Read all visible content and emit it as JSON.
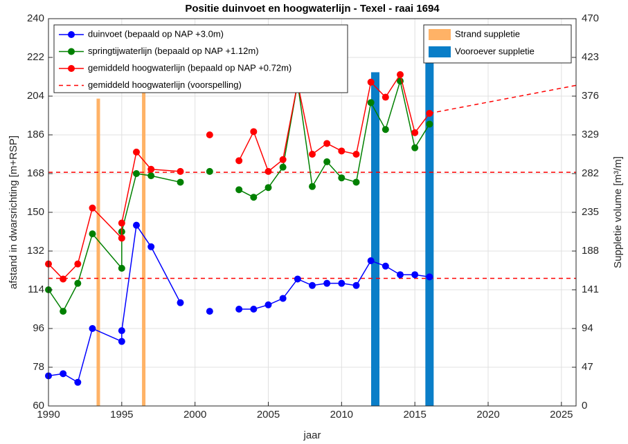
{
  "chart_data": {
    "type": "line",
    "title": "Positie duinvoet en hoogwaterlijn - Texel - raai 1694",
    "xlabel": "jaar",
    "ylabel": "afstand in dwarsrichting [m+RSP]",
    "y2label": "Suppletie volume [m³/m]",
    "xlim": [
      1990,
      2026
    ],
    "xticks": [
      1990,
      1995,
      2000,
      2005,
      2010,
      2015,
      2020,
      2025
    ],
    "ylim": [
      60,
      240
    ],
    "yticks": [
      60,
      78,
      96,
      114,
      132,
      150,
      168,
      186,
      204,
      222,
      240
    ],
    "y2lim": [
      0,
      470
    ],
    "y2ticks": [
      0,
      47,
      94,
      141,
      188,
      235,
      282,
      329,
      376,
      423,
      470
    ],
    "grid": true,
    "legend": "upper left",
    "bar_legend": "upper right",
    "series": [
      {
        "name": "duinvoet (bepaald op NAP +3.0m)",
        "color": "#0000ff",
        "style": "solid",
        "x": [
          1990,
          1991,
          1992,
          1993,
          1995,
          1995,
          1996,
          1997,
          1999,
          2000,
          2001,
          2002,
          2003,
          2004,
          2005,
          2006,
          2007,
          2008,
          2009,
          2010,
          2011,
          2012,
          2013,
          2014,
          2015,
          2016
        ],
        "values": [
          74,
          75,
          71,
          96,
          90,
          95,
          144,
          134,
          108,
          null,
          104,
          null,
          105,
          105,
          107,
          110,
          119,
          116,
          117,
          117,
          116,
          127.5,
          125,
          121,
          121,
          120
        ]
      },
      {
        "name": "springtijwaterlijn (bepaald op NAP +1.12m)",
        "color": "#008000",
        "style": "solid",
        "x": [
          1990,
          1991,
          1992,
          1993,
          1995,
          1995,
          1996,
          1997,
          1999,
          2000,
          2001,
          2002,
          2003,
          2004,
          2005,
          2006,
          2007,
          2008,
          2009,
          2010,
          2011,
          2012,
          2013,
          2014,
          2015,
          2016
        ],
        "values": [
          114,
          104,
          117,
          140,
          124,
          141,
          168,
          167,
          164,
          null,
          169,
          null,
          160.5,
          157,
          161.5,
          171,
          210,
          162,
          173.5,
          166,
          164,
          201,
          188.5,
          211,
          180,
          191
        ]
      },
      {
        "name": "gemiddeld hoogwaterlijn (bepaald op NAP +0.72m)",
        "color": "#ff0000",
        "style": "solid",
        "x": [
          1990,
          1991,
          1992,
          1993,
          1995,
          1995,
          1996,
          1997,
          1999,
          2000,
          2001,
          2002,
          2003,
          2004,
          2005,
          2006,
          2007,
          2008,
          2009,
          2010,
          2011,
          2012,
          2013,
          2014,
          2015,
          2016
        ],
        "values": [
          126,
          119,
          126,
          152,
          138,
          145,
          178,
          170,
          169,
          null,
          186,
          null,
          174,
          187.5,
          169,
          174.5,
          210,
          177,
          182,
          178.5,
          177,
          210.5,
          203.5,
          214,
          187,
          196
        ]
      },
      {
        "name": "gemiddeld hoogwaterlijn (voorspelling)",
        "color": "#ff0000",
        "style": "dashed",
        "x": [
          2016,
          2026
        ],
        "values": [
          196,
          209
        ]
      },
      {
        "name": "Strand suppletie",
        "color": "#ffb266",
        "type": "bar",
        "axis": "y2",
        "x": [
          1993.4,
          1996.5
        ],
        "values": [
          373,
          381
        ]
      },
      {
        "name": "Vooroever suppletie",
        "color": "#0a7ec8",
        "type": "bar",
        "axis": "y2",
        "x": [
          2012.3,
          2016
        ],
        "values": [
          405,
          445
        ]
      }
    ],
    "hlines": {
      "color": "#ff0000",
      "values": [
        168.6,
        119.3
      ]
    }
  }
}
